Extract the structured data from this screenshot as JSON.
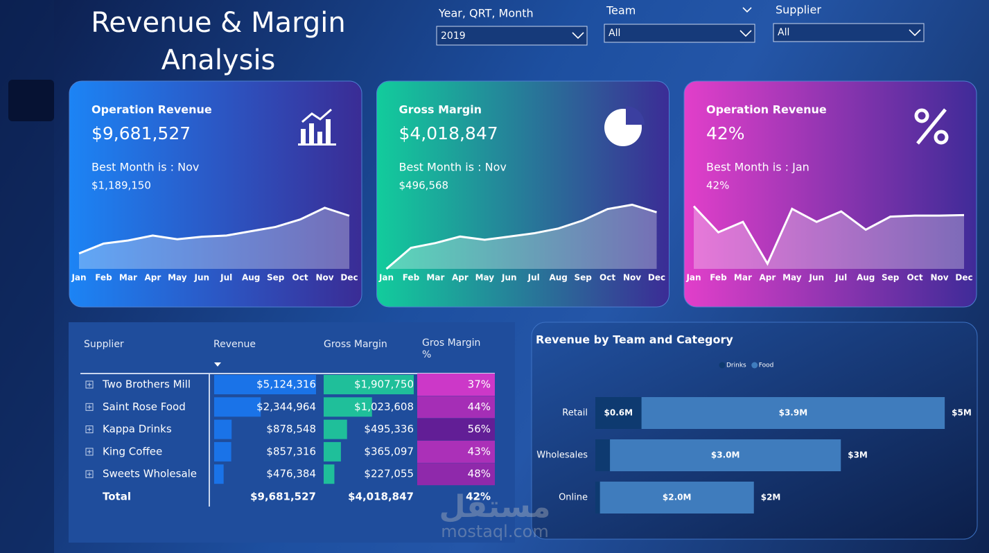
{
  "header": {
    "title": "Revenue & Margin Analysis"
  },
  "filters": [
    {
      "label": "Year, QRT, Month",
      "value": "2019"
    },
    {
      "label": "Team",
      "value": "All"
    },
    {
      "label": "Supplier",
      "value": "All"
    }
  ],
  "cards": [
    {
      "title": "Operation Revenue",
      "value": "$9,681,527",
      "best_month": "Best Month is : Nov",
      "best_value": "$1,189,150"
    },
    {
      "title": "Gross Margin",
      "value": "$4,018,847",
      "best_month": "Best Month is : Nov",
      "best_value": "$496,568"
    },
    {
      "title": "Operation Revenue",
      "value": "42%",
      "best_month": "Best Month is : Jan",
      "best_value": "42%"
    }
  ],
  "chart_data": [
    {
      "type": "area",
      "categories": [
        "Jan",
        "Feb",
        "Mar",
        "Apr",
        "May",
        "Jun",
        "Jul",
        "Aug",
        "Sep",
        "Oct",
        "Nov",
        "Dec"
      ],
      "values": [
        450000,
        610000,
        660000,
        740000,
        680000,
        720000,
        740000,
        810000,
        880000,
        1000000,
        1189150,
        1060000
      ],
      "ylim": [
        200000,
        1300000
      ],
      "color": "#ffffff"
    },
    {
      "type": "area",
      "categories": [
        "Jan",
        "Feb",
        "Mar",
        "Apr",
        "May",
        "Jun",
        "Jul",
        "Aug",
        "Sep",
        "Oct",
        "Nov",
        "Dec"
      ],
      "values": [
        100000,
        230000,
        260000,
        300000,
        280000,
        300000,
        320000,
        350000,
        400000,
        470000,
        496568,
        450000
      ],
      "ylim": [
        100000,
        520000
      ],
      "color": "#ffffff"
    },
    {
      "type": "area",
      "categories": [
        "Jan",
        "Feb",
        "Mar",
        "Apr",
        "May",
        "Jun",
        "Jul",
        "Aug",
        "Sep",
        "Oct",
        "Nov",
        "Dec"
      ],
      "values": [
        42,
        37,
        39,
        31,
        41.5,
        39,
        41,
        37.5,
        40,
        40.2,
        40.2,
        40.3
      ],
      "ylim": [
        30,
        43
      ],
      "color": "#ffffff"
    },
    {
      "type": "hbar",
      "stacked": true,
      "title": "Revenue by Team and Category",
      "categories": [
        "Retail",
        "Wholesales",
        "Online"
      ],
      "xlim": [
        0,
        4800000
      ],
      "series": [
        {
          "name": "Drinks",
          "color": "#0e3a70",
          "values": [
            600000,
            190000,
            60000
          ],
          "value_labels": [
            "$0.6M",
            null,
            null
          ]
        },
        {
          "name": "Food",
          "color": "#3f7cbd",
          "values": [
            3940000,
            3000000,
            2000000
          ],
          "value_labels": [
            "$3.9M",
            "$3.0M",
            "$2.0M"
          ]
        }
      ],
      "total_labels": [
        "$5M",
        "$3M",
        "$2M"
      ]
    }
  ],
  "table": {
    "headers": [
      "Supplier",
      "Revenue",
      "Gross Margin",
      "Gros Margin %"
    ],
    "suppliers": [
      "Two Brothers Mill",
      "Saint Rose Food",
      "Kappa Drinks",
      "King Coffee",
      "Sweets Wholesale"
    ],
    "revenue": {
      "color": "#1a73e8",
      "values": [
        5124316,
        2344964,
        878548,
        857316,
        476384
      ],
      "value_labels": [
        "$5,124,316",
        "$2,344,964",
        "$878,548",
        "$857,316",
        "$476,384"
      ]
    },
    "gross_margin": {
      "color": "#1fbf9a",
      "values": [
        1907750,
        1023608,
        495336,
        365097,
        227055
      ],
      "value_labels": [
        "$1,907,750",
        "$1,023,608",
        "$495,336",
        "$365,097",
        "$227,055"
      ]
    },
    "margin_pct": {
      "values": [
        37,
        44,
        56,
        43,
        48
      ],
      "value_labels": [
        "37%",
        "44%",
        "56%",
        "43%",
        "48%"
      ]
    },
    "total_label": "Total",
    "totals": [
      "$9,681,527",
      "$4,018,847",
      "42%"
    ]
  },
  "watermark": {
    "arabic": "مستقل",
    "latin": "mostaql.com"
  }
}
